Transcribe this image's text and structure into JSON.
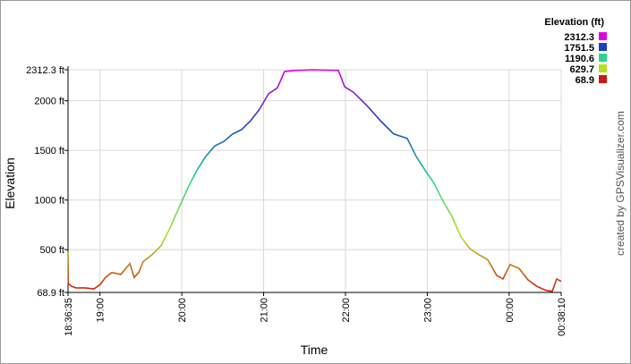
{
  "chart_data": {
    "type": "line",
    "x_label": "Time",
    "y_label": "Elevation",
    "watermark": "created by GPSVisualizer.com",
    "x": [
      1116.583,
      1116.8,
      1119.2,
      1122.5,
      1129.0,
      1135.6,
      1140.2,
      1144.1,
      1148.7,
      1155.3,
      1161.9,
      1165.1,
      1168.4,
      1171.7,
      1178.3,
      1184.8,
      1191.4,
      1198.0,
      1204.5,
      1211.1,
      1217.6,
      1224.2,
      1230.8,
      1237.3,
      1243.9,
      1250.5,
      1257.0,
      1263.6,
      1270.1,
      1275.4,
      1283.3,
      1296.4,
      1314.8,
      1319.4,
      1325.9,
      1335.8,
      1345.6,
      1355.4,
      1365.3,
      1371.8,
      1378.4,
      1384.9,
      1391.5,
      1398.1,
      1404.6,
      1411.2,
      1417.8,
      1424.3,
      1430.9,
      1435.5,
      1440.7,
      1447.3,
      1453.9,
      1460.4,
      1467.0,
      1471.6,
      1474.9,
      1478.167
    ],
    "values": [
      480,
      160,
      130,
      115,
      115,
      105,
      150,
      220,
      270,
      250,
      360,
      220,
      270,
      380,
      450,
      540,
      720,
      925,
      1125,
      1300,
      1440,
      1545,
      1590,
      1665,
      1710,
      1800,
      1915,
      2070,
      2130,
      2295,
      2305,
      2312.3,
      2305,
      2140,
      2085,
      1950,
      1800,
      1665,
      1620,
      1440,
      1300,
      1170,
      990,
      835,
      630,
      510,
      450,
      400,
      240,
      205,
      350,
      310,
      195,
      130,
      90,
      80,
      205,
      180
    ],
    "xlim": [
      1116.583,
      1478.167
    ],
    "xticks": [
      {
        "value": 1116.583,
        "label": "18:36:35"
      },
      {
        "value": 1140,
        "label": "19:00"
      },
      {
        "value": 1200,
        "label": "20:00"
      },
      {
        "value": 1260,
        "label": "21:00"
      },
      {
        "value": 1320,
        "label": "22:00"
      },
      {
        "value": 1380,
        "label": "23:00"
      },
      {
        "value": 1440,
        "label": "00:00"
      },
      {
        "value": 1478.167,
        "label": "00:38:10"
      }
    ],
    "ylim": [
      68.9,
      2312.3
    ],
    "yticks": [
      {
        "value": 68.9,
        "label": "68.9 ft"
      },
      {
        "value": 500,
        "label": "500 ft"
      },
      {
        "value": 1000,
        "label": "1000 ft"
      },
      {
        "value": 1500,
        "label": "1500 ft"
      },
      {
        "value": 2000,
        "label": "2000 ft"
      },
      {
        "value": 2312.3,
        "label": "2312.3 ft"
      }
    ],
    "grid": true,
    "legend": {
      "title": "Elevation (ft)",
      "entries": [
        {
          "value": 2312.3,
          "color": "#e000e0"
        },
        {
          "value": 1751.5,
          "color": "#1a40c0"
        },
        {
          "value": 1190.6,
          "color": "#28d890"
        },
        {
          "value": 629.7,
          "color": "#b8e01a"
        },
        {
          "value": 68.9,
          "color": "#cc1a10"
        }
      ]
    }
  }
}
